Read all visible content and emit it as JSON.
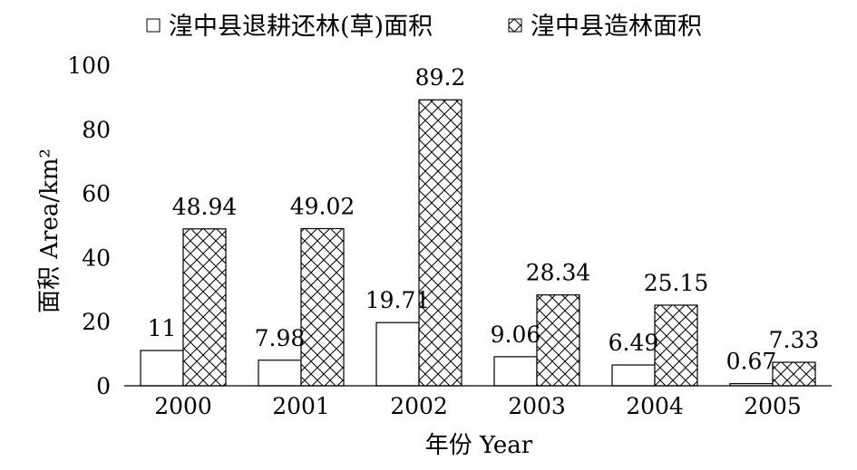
{
  "chart_data": {
    "type": "bar",
    "categories": [
      "2000",
      "2001",
      "2002",
      "2003",
      "2004",
      "2005"
    ],
    "series": [
      {
        "name": "湟中县退耕还林(草)面积",
        "values": [
          11,
          7.98,
          19.71,
          9.06,
          6.49,
          0.67
        ],
        "labels": [
          "11",
          "7.98",
          "19.71",
          "9.06",
          "6.49",
          "0.67"
        ],
        "pattern": "none"
      },
      {
        "name": "湟中县造林面积",
        "values": [
          48.94,
          49.02,
          89.2,
          28.34,
          25.15,
          7.33
        ],
        "labels": [
          "48.94",
          "49.02",
          "89.2",
          "28.34",
          "25.15",
          "7.33"
        ],
        "pattern": "crosshatch"
      }
    ],
    "xlabel": "年份 Year",
    "ylabel": "面积 Area/km²",
    "ylim": [
      0,
      100
    ],
    "yticks": [
      0,
      20,
      40,
      60,
      80,
      100
    ],
    "legend_position": "top",
    "grid": false
  }
}
